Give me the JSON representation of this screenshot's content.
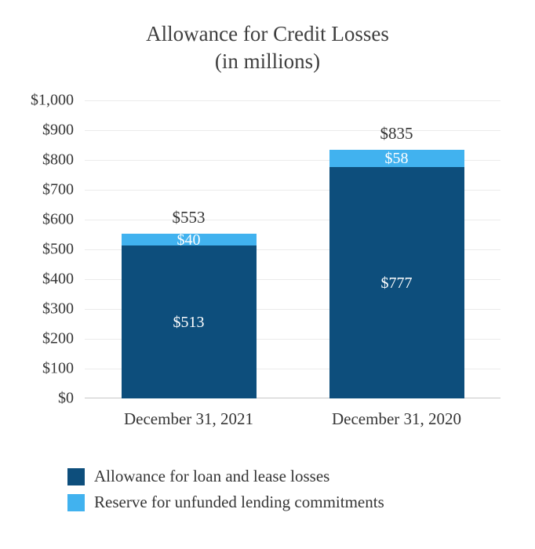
{
  "chart_data": {
    "type": "bar",
    "stacked": true,
    "title": "Allowance for Credit Losses",
    "subtitle": "(in millions)",
    "categories": [
      "December 31, 2021",
      "December 31, 2020"
    ],
    "series": [
      {
        "name": "Allowance for loan and lease losses",
        "color": "#0d4e7c",
        "values": [
          513,
          777
        ],
        "value_labels": [
          "$513",
          "$777"
        ]
      },
      {
        "name": "Reserve for unfunded lending commitments",
        "color": "#41b2ef",
        "values": [
          40,
          58
        ],
        "value_labels": [
          "$40",
          "$58"
        ]
      }
    ],
    "totals": [
      553,
      835
    ],
    "total_labels": [
      "$553",
      "$835"
    ],
    "ylim": [
      0,
      1000
    ],
    "ytick_step": 100,
    "ytick_labels": [
      "$0",
      "$100",
      "$200",
      "$300",
      "$400",
      "$500",
      "$600",
      "$700",
      "$800",
      "$900",
      "$1,000"
    ],
    "grid": true,
    "legend_position": "bottom-left",
    "label_text_color_inside": "#ffffff",
    "label_text_color_total": "#333333"
  }
}
